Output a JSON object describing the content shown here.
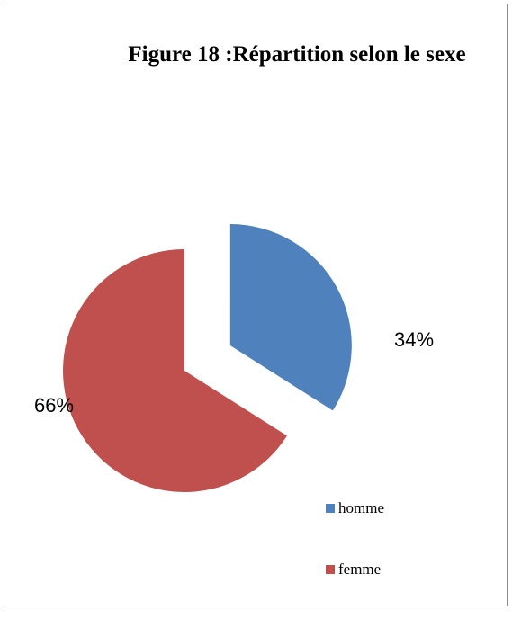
{
  "chart_data": {
    "type": "pie",
    "title": "Figure 18 :Répartition selon le sexe",
    "slices": [
      {
        "name": "homme",
        "value": 34,
        "label": "34%",
        "color": "#4f81bd"
      },
      {
        "name": "femme",
        "value": 66,
        "label": "66%",
        "color": "#c0504d"
      }
    ],
    "legend_position": "right",
    "exploded": true
  }
}
